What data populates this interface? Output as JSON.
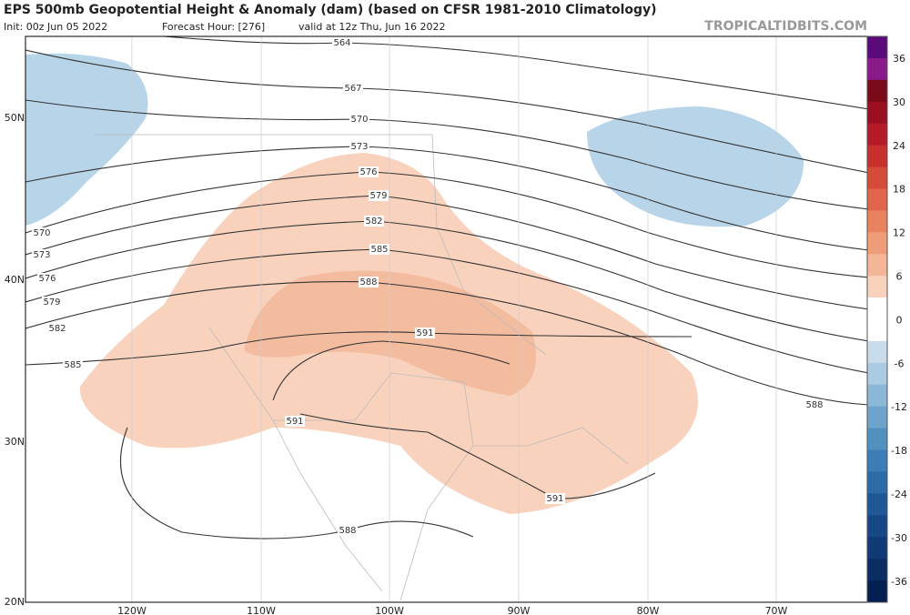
{
  "header": {
    "title": "EPS 500mb Geopotential Height & Anomaly (dam) (based on CFSR 1981-2010 Climatology)",
    "init": "Init: 00z Jun 05 2022",
    "forecast_hour": "Forecast Hour: [276]",
    "valid": "valid at 12z Thu, Jun 16 2022",
    "watermark": "TROPICALTIDBITS.COM"
  },
  "map": {
    "latitude_labels": [
      "50N",
      "40N",
      "30N",
      "20N"
    ],
    "longitude_labels": [
      "120W",
      "110W",
      "100W",
      "90W",
      "80W",
      "70W"
    ],
    "contour_labels": [
      "564",
      "567",
      "570",
      "573",
      "576",
      "579",
      "582",
      "585",
      "588",
      "591",
      "591",
      "591",
      "588",
      "588",
      "570",
      "573",
      "576",
      "579",
      "582",
      "585"
    ]
  },
  "colorbar": {
    "labels": [
      "36",
      "30",
      "24",
      "18",
      "12",
      "6",
      "0",
      "-6",
      "-12",
      "-18",
      "-24",
      "-30",
      "-36"
    ]
  }
}
